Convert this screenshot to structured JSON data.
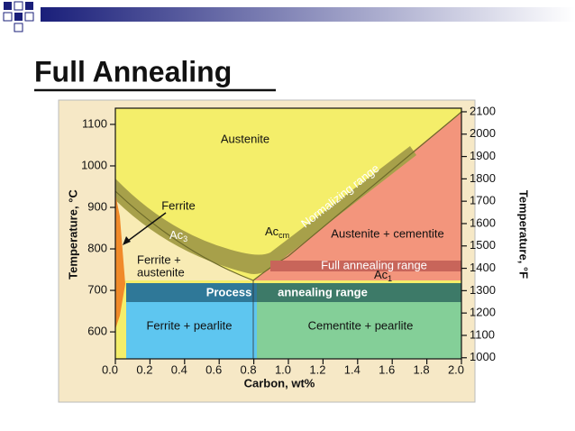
{
  "header": {
    "title": "Full Annealing"
  },
  "diagram": {
    "x_axis": {
      "title": "Carbon, wt%",
      "xlim": [
        0,
        2
      ],
      "ticks": [
        {
          "value": 0,
          "label": "0.0"
        },
        {
          "value": 0.2,
          "label": "0.2"
        },
        {
          "value": 0.4,
          "label": "0.4"
        },
        {
          "value": 0.6,
          "label": "0.6"
        },
        {
          "value": 0.8,
          "label": "0.8"
        },
        {
          "value": 1,
          "label": "1.0"
        },
        {
          "value": 1.2,
          "label": "1.2"
        },
        {
          "value": 1.4,
          "label": "1.4"
        },
        {
          "value": 1.6,
          "label": "1.6"
        },
        {
          "value": 1.8,
          "label": "1.8"
        },
        {
          "value": 2,
          "label": "2.0"
        }
      ]
    },
    "y_axis": {
      "title": "Temperature, °C",
      "ylim": [
        535,
        1139
      ],
      "ticks": [
        600,
        700,
        800,
        900,
        1000,
        1100
      ]
    },
    "y2_axis": {
      "title": "Temperature, °F",
      "ylim": [
        995,
        2116
      ],
      "ticks": [
        1000,
        1100,
        1200,
        1300,
        1400,
        1500,
        1600,
        1700,
        1800,
        1900,
        2000,
        2100
      ]
    },
    "labels": {
      "austenite": "Austenite",
      "ferrite": "Ferrite",
      "ac3": {
        "main": "Ac",
        "sub": "3"
      },
      "acm": {
        "main": "Ac",
        "sub": "cm"
      },
      "normalizing": "Normalizing range",
      "austenite_cementite": "Austenite + cementite",
      "ferrite_austenite": [
        "Ferrite +",
        "austenite"
      ],
      "full_annealing": "Full annealing range",
      "ac1": {
        "main": "Ac",
        "sub": "1"
      },
      "process": "Process",
      "annealing_range": "annealing range",
      "ferrite_pearlite": "Ferrite + pearlite",
      "cementite_pearlite": "Cementite + pearlite"
    }
  }
}
